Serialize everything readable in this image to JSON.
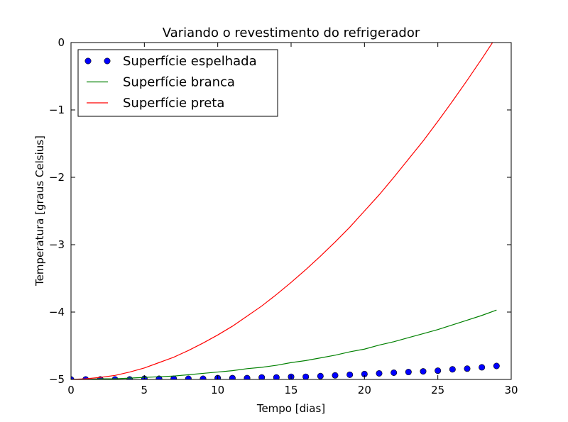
{
  "chart_data": {
    "type": "line",
    "title": "Variando o revestimento do refrigerador",
    "xlabel": "Tempo [dias]",
    "ylabel": "Temperatura [graus Celsius]",
    "xlim": [
      0,
      30
    ],
    "ylim": [
      -5,
      0
    ],
    "xticks": [
      0,
      5,
      10,
      15,
      20,
      25,
      30
    ],
    "yticks": [
      0,
      -1,
      -2,
      -3,
      -4,
      -5
    ],
    "xtick_labels": [
      "0",
      "5",
      "10",
      "15",
      "20",
      "25",
      "30"
    ],
    "ytick_labels": [
      "0",
      "−1",
      "−2",
      "−3",
      "−4",
      "−5"
    ],
    "grid": false,
    "legend_position": "top-left",
    "series": [
      {
        "name": "Superfície espelhada",
        "style": "markers",
        "color": "#0000ff",
        "x": [
          0,
          1,
          2,
          3,
          4,
          5,
          6,
          7,
          8,
          9,
          10,
          11,
          12,
          13,
          14,
          15,
          16,
          17,
          18,
          19,
          20,
          21,
          22,
          23,
          24,
          25,
          26,
          27,
          28,
          29
        ],
        "y": [
          -5.0,
          -5.0,
          -5.0,
          -5.0,
          -5.0,
          -4.99,
          -4.99,
          -4.99,
          -4.99,
          -4.99,
          -4.98,
          -4.98,
          -4.98,
          -4.97,
          -4.97,
          -4.96,
          -4.96,
          -4.95,
          -4.94,
          -4.93,
          -4.92,
          -4.91,
          -4.9,
          -4.89,
          -4.88,
          -4.87,
          -4.85,
          -4.84,
          -4.82,
          -4.8
        ]
      },
      {
        "name": "Superfície branca",
        "style": "line",
        "color": "#008000",
        "x": [
          0,
          1,
          2,
          3,
          4,
          5,
          6,
          7,
          8,
          9,
          10,
          11,
          12,
          13,
          14,
          15,
          16,
          17,
          18,
          19,
          20,
          21,
          22,
          23,
          24,
          25,
          26,
          27,
          28,
          29
        ],
        "y": [
          -5.0,
          -5.0,
          -4.99,
          -4.99,
          -4.98,
          -4.97,
          -4.96,
          -4.95,
          -4.93,
          -4.91,
          -4.89,
          -4.87,
          -4.84,
          -4.82,
          -4.79,
          -4.75,
          -4.72,
          -4.68,
          -4.64,
          -4.59,
          -4.55,
          -4.49,
          -4.44,
          -4.38,
          -4.32,
          -4.26,
          -4.19,
          -4.12,
          -4.05,
          -3.97
        ]
      },
      {
        "name": "Superfície preta",
        "style": "line",
        "color": "#ff0000",
        "x": [
          0,
          1,
          2,
          3,
          4,
          5,
          6,
          7,
          8,
          9,
          10,
          11,
          12,
          13,
          14,
          15,
          16,
          17,
          18,
          19,
          20,
          21,
          22,
          23,
          24,
          25,
          26,
          27,
          28,
          29
        ],
        "y": [
          -5.0,
          -4.99,
          -4.97,
          -4.94,
          -4.89,
          -4.83,
          -4.75,
          -4.67,
          -4.57,
          -4.46,
          -4.34,
          -4.21,
          -4.06,
          -3.91,
          -3.74,
          -3.56,
          -3.37,
          -3.17,
          -2.96,
          -2.74,
          -2.5,
          -2.26,
          -2.0,
          -1.73,
          -1.46,
          -1.17,
          -0.87,
          -0.56,
          -0.24,
          0.09
        ]
      }
    ]
  }
}
